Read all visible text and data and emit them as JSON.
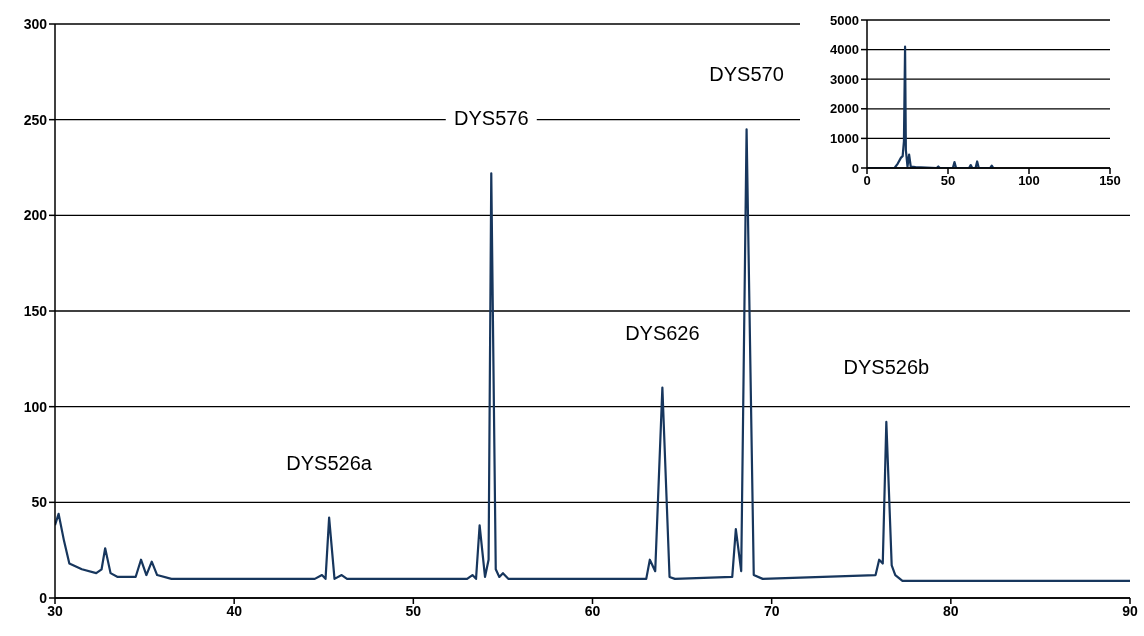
{
  "chart_data": [
    {
      "type": "line",
      "color": "#17365d",
      "x": [
        30,
        30.2,
        30.5,
        30.8,
        31.5,
        32.3,
        32.6,
        32.8,
        33.1,
        33.5,
        34.5,
        34.8,
        35.1,
        35.4,
        35.7,
        36.5,
        40,
        44.5,
        44.9,
        45.1,
        45.3,
        45.6,
        46,
        46.3,
        53,
        53.3,
        53.5,
        53.7,
        54,
        54.2,
        54.35,
        54.6,
        54.8,
        55,
        55.3,
        63,
        63.2,
        63.5,
        63.9,
        64.3,
        64.6,
        67.8,
        68,
        68.3,
        68.6,
        69,
        69.5,
        75.8,
        76,
        76.2,
        76.4,
        76.7,
        76.9,
        77.3,
        90
      ],
      "values": [
        38,
        44,
        30,
        18,
        15,
        13,
        15,
        26,
        13,
        11,
        11,
        20,
        12,
        19,
        12,
        10,
        10,
        10,
        12,
        10,
        42,
        10,
        12,
        10,
        10,
        12,
        10,
        38,
        11,
        20,
        222,
        15,
        11,
        13,
        10,
        10,
        20,
        14,
        110,
        11,
        10,
        11,
        36,
        14,
        245,
        12,
        10,
        12,
        20,
        18,
        92,
        17,
        12,
        9,
        9
      ],
      "xlim": [
        30,
        90
      ],
      "xticks": [
        30,
        40,
        50,
        60,
        70,
        80,
        90
      ],
      "ylim": [
        0,
        300
      ],
      "yticks": [
        0,
        50,
        100,
        150,
        200,
        250,
        300
      ],
      "grid": "y",
      "annotations": [
        {
          "text": "DYS526a",
          "x": 45.3,
          "y": 42
        },
        {
          "text": "DYS576",
          "x": 54.35,
          "y": 222
        },
        {
          "text": "DYS626",
          "x": 63.9,
          "y": 110
        },
        {
          "text": "DYS570",
          "x": 68.6,
          "y": 245
        },
        {
          "text": "DYS526b",
          "x": 76.4,
          "y": 92
        }
      ]
    },
    {
      "type": "line",
      "color": "#17365d",
      "x": [
        0,
        17,
        19,
        21,
        22,
        22.8,
        23.5,
        24,
        25,
        26,
        27,
        30,
        43,
        44,
        45,
        53,
        54,
        55,
        63,
        64,
        65,
        67,
        68,
        69,
        76,
        77,
        78
      ],
      "values": [
        0,
        0,
        150,
        350,
        400,
        900,
        4100,
        600,
        50,
        450,
        50,
        30,
        0,
        50,
        0,
        0,
        200,
        0,
        0,
        100,
        0,
        0,
        220,
        0,
        0,
        80,
        0
      ],
      "xlim": [
        0,
        150
      ],
      "xticks": [
        0,
        50,
        100,
        150
      ],
      "ylim": [
        0,
        5000
      ],
      "yticks": [
        0,
        1000,
        2000,
        3000,
        4000,
        5000
      ],
      "grid": "y"
    }
  ]
}
